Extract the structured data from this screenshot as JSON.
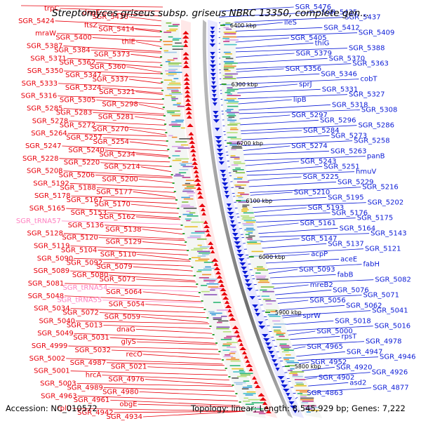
{
  "title": "Streptomyces griseus subsp. griseus NBRC 13350, complete gen...",
  "accession": "Accession: NC_010572",
  "summary": "Topology: linear; Length: 8,545,929 bp; Genes: 7,222",
  "colors": {
    "forward": "#e8000b",
    "reverse": "#0b1bd6",
    "rna": "#ff80c0",
    "kbp_tick": "#2e9d2e",
    "backbone": "#8f8f8f"
  },
  "kbp_markers": [
    "6400 kbp",
    "6300 kbp",
    "6200 kbp",
    "6100 kbp",
    "6000 kbp",
    "5900 kbp",
    "5800 kbp"
  ],
  "left_labels": [
    {
      "text": "trpC",
      "color": "red"
    },
    {
      "text": "dnaE",
      "color": "red"
    },
    {
      "text": "SGR_5436",
      "color": "red"
    },
    {
      "text": "SGR_5424",
      "color": "red"
    },
    {
      "text": "ftsZ",
      "color": "red"
    },
    {
      "text": "SGR_5414",
      "color": "red"
    },
    {
      "text": "mraW",
      "color": "red"
    },
    {
      "text": "SGR_5400",
      "color": "red"
    },
    {
      "text": "thiE",
      "color": "red"
    },
    {
      "text": "SGR_5387",
      "color": "red"
    },
    {
      "text": "SGR_5384",
      "color": "red"
    },
    {
      "text": "SGR_5373",
      "color": "red"
    },
    {
      "text": "SGR_5371",
      "color": "red"
    },
    {
      "text": "SGR_5362",
      "color": "red"
    },
    {
      "text": "SGR_5360",
      "color": "red"
    },
    {
      "text": "SGR_5350",
      "color": "red"
    },
    {
      "text": "SGR_5347",
      "color": "red"
    },
    {
      "text": "SGR_5337",
      "color": "red"
    },
    {
      "text": "SGR_5333",
      "color": "red"
    },
    {
      "text": "SGR_5324",
      "color": "red"
    },
    {
      "text": "SGR_5321",
      "color": "red"
    },
    {
      "text": "SGR_5316",
      "color": "red"
    },
    {
      "text": "SGR_5305",
      "color": "red"
    },
    {
      "text": "SGR_5298",
      "color": "red"
    },
    {
      "text": "SGR_5285",
      "color": "red"
    },
    {
      "text": "SGR_5283",
      "color": "red"
    },
    {
      "text": "SGR_5281",
      "color": "red"
    },
    {
      "text": "SGR_5278",
      "color": "red"
    },
    {
      "text": "SGR_5272",
      "color": "red"
    },
    {
      "text": "SGR_5270",
      "color": "red"
    },
    {
      "text": "SGR_5264",
      "color": "red"
    },
    {
      "text": "SGR_5257",
      "color": "red"
    },
    {
      "text": "SGR_5254",
      "color": "red"
    },
    {
      "text": "SGR_5247",
      "color": "red"
    },
    {
      "text": "SGR_5240",
      "color": "red"
    },
    {
      "text": "SGR_5234",
      "color": "red"
    },
    {
      "text": "SGR_5228",
      "color": "red"
    },
    {
      "text": "SGR_5220",
      "color": "red"
    },
    {
      "text": "SGR_5214",
      "color": "red"
    },
    {
      "text": "SGR_5208",
      "color": "red"
    },
    {
      "text": "SGR_5206",
      "color": "red"
    },
    {
      "text": "SGR_5200",
      "color": "red"
    },
    {
      "text": "SGR_5192",
      "color": "red"
    },
    {
      "text": "SGR_5188",
      "color": "red"
    },
    {
      "text": "SGR_5177",
      "color": "red"
    },
    {
      "text": "SGR_5178",
      "color": "red"
    },
    {
      "text": "SGR_5167",
      "color": "red"
    },
    {
      "text": "SGR_5170",
      "color": "red"
    },
    {
      "text": "SGR_5165",
      "color": "red"
    },
    {
      "text": "SGR_5153",
      "color": "red"
    },
    {
      "text": "SGR_5162",
      "color": "red"
    },
    {
      "text": "SGR_tRNA57",
      "color": "pink"
    },
    {
      "text": "SGR_5136",
      "color": "red"
    },
    {
      "text": "SGR_5138",
      "color": "red"
    },
    {
      "text": "SGR_5128",
      "color": "red"
    },
    {
      "text": "SGR_5120",
      "color": "red"
    },
    {
      "text": "SGR_5129",
      "color": "red"
    },
    {
      "text": "SGR_5119",
      "color": "red"
    },
    {
      "text": "SGR_5104",
      "color": "red"
    },
    {
      "text": "SGR_5110",
      "color": "red"
    },
    {
      "text": "SGR_5090",
      "color": "red"
    },
    {
      "text": "SGR_5092",
      "color": "red"
    },
    {
      "text": "SGR_5079",
      "color": "red"
    },
    {
      "text": "SGR_5089",
      "color": "red"
    },
    {
      "text": "SGR_5080",
      "color": "red"
    },
    {
      "text": "SGR_5073",
      "color": "red"
    },
    {
      "text": "SGR_5081",
      "color": "red"
    },
    {
      "text": "SGR_tRNA54",
      "color": "pink"
    },
    {
      "text": "SGR_5064",
      "color": "red"
    },
    {
      "text": "SGR_5048",
      "color": "red"
    },
    {
      "text": "SGR_tRNA55",
      "color": "pink"
    },
    {
      "text": "SGR_5054",
      "color": "red"
    },
    {
      "text": "SGR_5034",
      "color": "red"
    },
    {
      "text": "SGR_5072",
      "color": "red"
    },
    {
      "text": "SGR_5059",
      "color": "red"
    },
    {
      "text": "SGR_5040",
      "color": "red"
    },
    {
      "text": "SGR_5013",
      "color": "red"
    },
    {
      "text": "dnaG",
      "color": "red"
    },
    {
      "text": "SGR_5049",
      "color": "red"
    },
    {
      "text": "SGR_5031",
      "color": "red"
    },
    {
      "text": "glyS",
      "color": "red"
    },
    {
      "text": "SGR_4999",
      "color": "red"
    },
    {
      "text": "SGR_5032",
      "color": "red"
    },
    {
      "text": "recO",
      "color": "red"
    },
    {
      "text": "SGR_5002",
      "color": "red"
    },
    {
      "text": "SGR_4987",
      "color": "red"
    },
    {
      "text": "SGR_5021",
      "color": "red"
    },
    {
      "text": "SGR_5001",
      "color": "red"
    },
    {
      "text": "hrcA",
      "color": "red"
    },
    {
      "text": "SGR_4976",
      "color": "red"
    },
    {
      "text": "SGR_5003",
      "color": "red"
    },
    {
      "text": "SGR_4989",
      "color": "red"
    },
    {
      "text": "SGR_4980",
      "color": "red"
    },
    {
      "text": "SGR_4963",
      "color": "red"
    },
    {
      "text": "SGR_4961",
      "color": "red"
    },
    {
      "text": "obgE",
      "color": "red"
    },
    {
      "text": "rplU",
      "color": "red"
    },
    {
      "text": "SGR_4942",
      "color": "red"
    },
    {
      "text": "SGR_4934",
      "color": "red"
    }
  ],
  "right_labels": [
    {
      "text": "SGR_5476"
    },
    {
      "text": "SGR_5435"
    },
    {
      "text": "SGR_5437"
    },
    {
      "text": "ileS"
    },
    {
      "text": "SGR_5412"
    },
    {
      "text": "SGR_5409"
    },
    {
      "text": "SGR_5405"
    },
    {
      "text": "thiG"
    },
    {
      "text": "SGR_5388"
    },
    {
      "text": "SGR_5379"
    },
    {
      "text": "SGR_5370"
    },
    {
      "text": "SGR_5363"
    },
    {
      "text": "SGR_5356"
    },
    {
      "text": "SGR_5346"
    },
    {
      "text": "cobT"
    },
    {
      "text": "sprJ"
    },
    {
      "text": "SGR_5331"
    },
    {
      "text": "SGR_5327"
    },
    {
      "text": "lipB"
    },
    {
      "text": "SGR_5318"
    },
    {
      "text": "SGR_5308"
    },
    {
      "text": "SGR_5297"
    },
    {
      "text": "SGR_5296"
    },
    {
      "text": "SGR_5286"
    },
    {
      "text": "SGR_5284"
    },
    {
      "text": "SGR_5273"
    },
    {
      "text": "SGR_5258"
    },
    {
      "text": "SGR_5274"
    },
    {
      "text": "SGR_5263"
    },
    {
      "text": "panB"
    },
    {
      "text": "SGR_5243"
    },
    {
      "text": "SGR_5251"
    },
    {
      "text": "hmuV"
    },
    {
      "text": "SGR_5225"
    },
    {
      "text": "SGR_5229"
    },
    {
      "text": "SGR_5216"
    },
    {
      "text": "SGR_5210"
    },
    {
      "text": "SGR_5195"
    },
    {
      "text": "SGR_5202"
    },
    {
      "text": "SGR_5193"
    },
    {
      "text": "SGR_5176"
    },
    {
      "text": "SGR_5175"
    },
    {
      "text": "SGR_5161"
    },
    {
      "text": "SGR_5164"
    },
    {
      "text": "SGR_5143"
    },
    {
      "text": "SGR_5147"
    },
    {
      "text": "SGR_5137"
    },
    {
      "text": "SGR_5121"
    },
    {
      "text": "acpP"
    },
    {
      "text": "aceE"
    },
    {
      "text": "fabH"
    },
    {
      "text": "SGR_5093"
    },
    {
      "text": "fabB"
    },
    {
      "text": "SGR_5082"
    },
    {
      "text": "mreB2"
    },
    {
      "text": "SGR_5076"
    },
    {
      "text": "SGR_5071"
    },
    {
      "text": "SGR_5056"
    },
    {
      "text": "SGR_5062"
    },
    {
      "text": "SGR_5041"
    },
    {
      "text": "sprW"
    },
    {
      "text": "SGR_5018"
    },
    {
      "text": "SGR_5016"
    },
    {
      "text": "SGR_5000"
    },
    {
      "text": "rpsT"
    },
    {
      "text": "SGR_4978"
    },
    {
      "text": "SGR_4965"
    },
    {
      "text": "SGR_4947"
    },
    {
      "text": "SGR_4946"
    },
    {
      "text": "SGR_4952"
    },
    {
      "text": "SGR_4920"
    },
    {
      "text": "SGR_4926"
    },
    {
      "text": "SGR_4902"
    },
    {
      "text": "asd2"
    },
    {
      "text": "SGR_4877"
    },
    {
      "text": "SGR_4863"
    }
  ]
}
